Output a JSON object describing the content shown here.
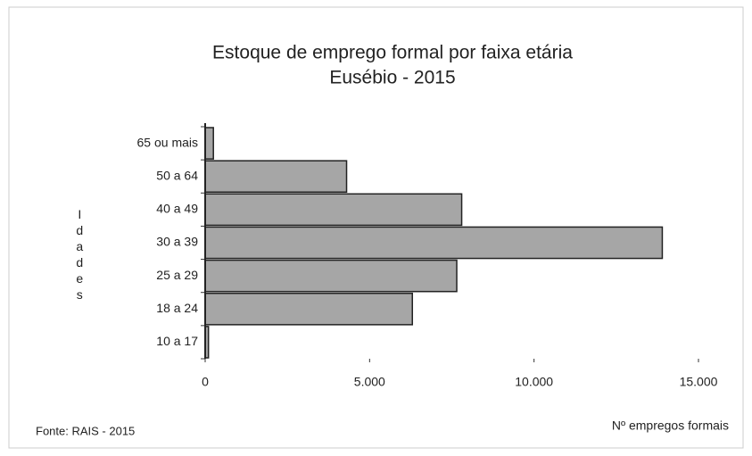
{
  "chart_data": {
    "type": "hbar",
    "title": "Estoque de emprego formal por faixa etária",
    "subtitle": "Eusébio - 2015",
    "y_label": "Idades",
    "x_label": "Nº empregos formais",
    "source": "Fonte: RAIS - 2015",
    "categories": [
      "65 ou mais",
      "50 a 64",
      "40 a 49",
      "30 a 39",
      "25 a 29",
      "18 a 24",
      "10 a 17"
    ],
    "values": [
      250,
      4300,
      7800,
      13900,
      7650,
      6300,
      100
    ],
    "color": "#a6a6a6",
    "xlim": [
      0,
      15000
    ],
    "xticks": [
      0,
      {
        "value": 5000,
        "label": "5.000"
      },
      {
        "value": 10000,
        "label": "10.000"
      },
      {
        "value": 15000,
        "label": "15.000"
      }
    ]
  }
}
